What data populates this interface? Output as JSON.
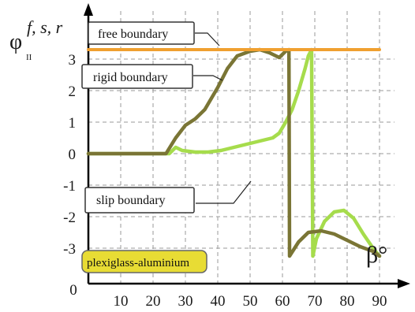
{
  "chart_data": {
    "type": "line",
    "x_ticks": [
      "0",
      "10",
      "20",
      "30",
      "40",
      "50",
      "60",
      "70",
      "80",
      "90"
    ],
    "y_ticks": [
      "3",
      "2",
      "1",
      "0",
      "-1",
      "-2",
      "-3"
    ],
    "ylabel": {
      "main": "φ",
      "sub": "II",
      "sup": "f, s, r"
    },
    "xlabel": "β°",
    "xlim": [
      0,
      90
    ],
    "ylim": [
      -3.3,
      3.5
    ],
    "grid": true,
    "series": [
      {
        "name": "free boundary",
        "color": "#f0a030",
        "x": [
          0,
          90
        ],
        "y": [
          3.3,
          3.3
        ]
      },
      {
        "name": "rigid boundary",
        "color": "#7a7535",
        "x": [
          0,
          24,
          27,
          30,
          33,
          36,
          40,
          43,
          46,
          50,
          53,
          56,
          59,
          61,
          62,
          62.1,
          62.2,
          65,
          68,
          72,
          76,
          80,
          84,
          88,
          90
        ],
        "y": [
          0,
          0,
          0.5,
          0.9,
          1.1,
          1.4,
          2.1,
          2.7,
          3.1,
          3.25,
          3.3,
          3.2,
          3.05,
          3.25,
          3.3,
          0,
          -3.25,
          -2.8,
          -2.5,
          -2.45,
          -2.55,
          -2.75,
          -2.95,
          -3.1,
          -3.25
        ]
      },
      {
        "name": "slip boundary",
        "color": "#a6dc4c",
        "x": [
          0,
          25,
          27,
          29,
          33,
          37,
          41,
          45,
          49,
          53,
          57,
          59,
          61,
          63,
          65,
          67,
          68,
          69,
          69.2,
          69.4,
          70.5,
          73,
          76,
          79,
          82,
          85,
          88,
          90
        ],
        "y": [
          0,
          0,
          0.2,
          0.1,
          0.05,
          0.05,
          0.1,
          0.2,
          0.3,
          0.4,
          0.5,
          0.65,
          1.0,
          1.4,
          2.0,
          2.7,
          3.1,
          3.3,
          0,
          -3.25,
          -2.7,
          -2.15,
          -1.85,
          -1.8,
          -2.05,
          -2.55,
          -3.0,
          -3.25
        ]
      }
    ],
    "annotations": {
      "free": "free boundary",
      "rigid": "rigid boundary",
      "slip": "slip boundary"
    },
    "badge": "plexiglass-aluminium"
  }
}
